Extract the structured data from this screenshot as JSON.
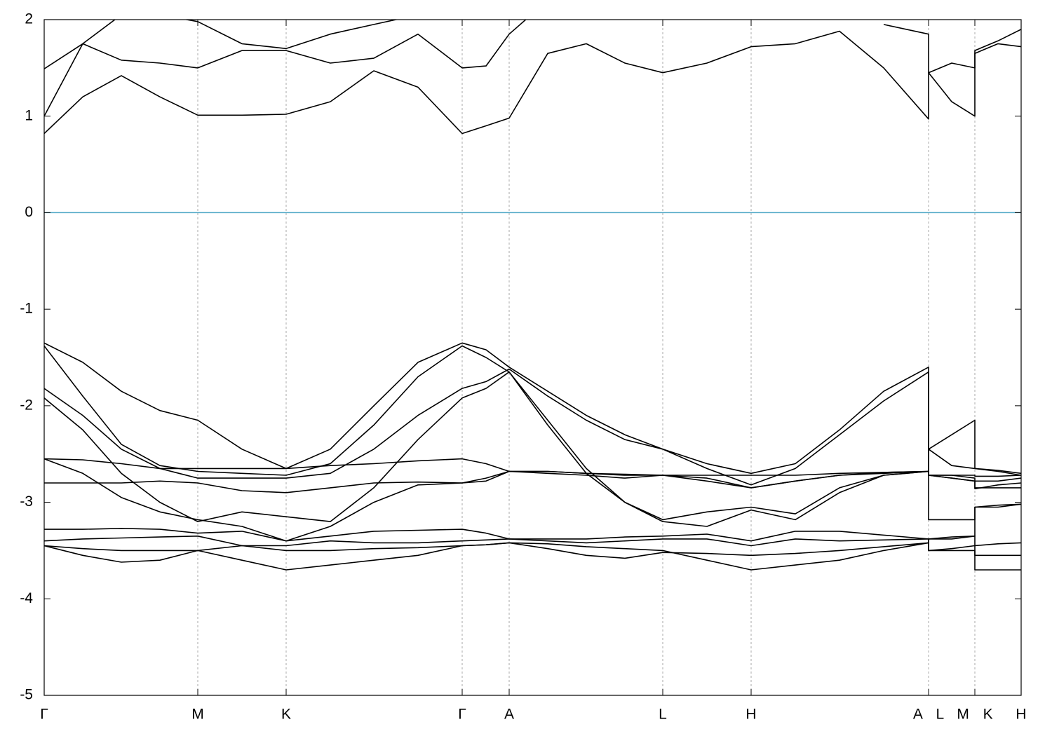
{
  "chart_data": {
    "type": "line",
    "x": [
      0,
      55,
      110,
      165,
      219,
      282,
      345,
      408,
      470,
      533,
      596,
      630,
      663,
      718,
      773,
      828,
      882,
      945,
      1008,
      1071,
      1134,
      1197,
      1261,
      1261,
      1294,
      1327,
      1327,
      1360,
      1393
    ],
    "xlim": [
      0,
      1393
    ],
    "xticks": [
      {
        "value": 0,
        "label": "Γ"
      },
      {
        "value": 219,
        "label": "M"
      },
      {
        "value": 345,
        "label": "K"
      },
      {
        "value": 596,
        "label": "Γ"
      },
      {
        "value": 663,
        "label": "A"
      },
      {
        "value": 882,
        "label": "L"
      },
      {
        "value": 1008,
        "label": "H"
      },
      {
        "value": 1261,
        "label": "A L"
      },
      {
        "value": 1327,
        "label": "M K"
      },
      {
        "value": 1393,
        "label": "H"
      }
    ],
    "ylim": [
      -5,
      2
    ],
    "yticks": [
      -5,
      -4,
      -3,
      -2,
      -1,
      0,
      1,
      2
    ],
    "grid": "x",
    "reference_line": {
      "value": 0,
      "color": "#4aa5c5"
    },
    "series": [
      {
        "color": "#000000",
        "values": [
          0.82,
          1.2,
          1.42,
          1.2,
          1.01,
          1.01,
          1.02,
          1.15,
          1.47,
          1.3,
          0.82,
          0.9,
          0.98,
          1.65,
          1.75,
          1.55,
          1.45,
          1.55,
          1.72,
          1.75,
          1.88,
          1.5,
          0.97,
          1.45,
          1.15,
          1.0,
          1.65,
          1.75,
          1.72
        ]
      },
      {
        "color": "#000000",
        "values": [
          1.0,
          1.75,
          1.58,
          1.55,
          1.5,
          1.68,
          1.68,
          1.55,
          1.6,
          1.85,
          1.5,
          1.52,
          1.85,
          2.2,
          null,
          null,
          null,
          null,
          null,
          null,
          null,
          1.95,
          1.85,
          1.45,
          1.55,
          1.5,
          1.68,
          1.78,
          1.9
        ]
      },
      {
        "color": "#000000",
        "values": [
          1.49,
          1.75,
          2.05,
          2.05,
          1.98,
          1.75,
          1.7,
          1.85,
          1.95,
          2.05,
          null,
          null,
          null,
          null,
          null,
          null,
          null,
          null,
          null,
          null,
          null,
          null,
          null,
          null,
          null,
          null,
          null,
          null,
          null
        ]
      },
      {
        "color": "#000000",
        "values": [
          -1.35,
          -1.55,
          -1.85,
          -2.05,
          -2.15,
          -2.45,
          -2.65,
          -2.45,
          -2.0,
          -1.55,
          -1.35,
          -1.42,
          -1.6,
          -1.85,
          -2.1,
          -2.3,
          -2.45,
          -2.6,
          -2.7,
          -2.6,
          -2.25,
          -1.85,
          -1.6,
          -2.45,
          -2.3,
          -2.15,
          -2.65,
          -2.68,
          -2.72
        ]
      },
      {
        "color": "#000000",
        "values": [
          -1.38,
          -1.9,
          -2.4,
          -2.62,
          -2.68,
          -2.7,
          -2.72,
          -2.6,
          -2.2,
          -1.7,
          -1.38,
          -1.5,
          -1.65,
          -2.15,
          -2.65,
          -3.0,
          -3.18,
          -3.1,
          -3.05,
          -3.12,
          -2.85,
          -2.72,
          -2.68,
          -2.72,
          -2.75,
          -2.78,
          -2.85,
          -2.85,
          -2.85
        ]
      },
      {
        "color": "#000000",
        "values": [
          -1.82,
          -2.1,
          -2.45,
          -2.65,
          -2.75,
          -2.75,
          -2.75,
          -2.7,
          -2.45,
          -2.1,
          -1.82,
          -1.75,
          -1.62,
          -1.9,
          -2.15,
          -2.35,
          -2.45,
          -2.65,
          -2.82,
          -2.65,
          -2.3,
          -1.95,
          -1.65,
          -3.18,
          -3.18,
          -3.18,
          -3.05,
          -3.03,
          -3.02
        ]
      },
      {
        "color": "#000000",
        "values": [
          -1.92,
          -2.25,
          -2.7,
          -3.0,
          -3.2,
          -3.1,
          -3.15,
          -3.2,
          -2.85,
          -2.35,
          -1.92,
          -1.82,
          -1.65,
          -2.2,
          -2.7,
          -3.0,
          -3.2,
          -3.25,
          -3.08,
          -3.18,
          -2.9,
          -2.72,
          -2.68,
          -2.72,
          -2.72,
          -2.72,
          -2.73,
          -2.73,
          -2.72
        ]
      },
      {
        "color": "#000000",
        "values": [
          -2.55,
          -2.56,
          -2.6,
          -2.65,
          -2.65,
          -2.65,
          -2.65,
          -2.62,
          -2.6,
          -2.57,
          -2.55,
          -2.6,
          -2.68,
          -2.68,
          -2.7,
          -2.71,
          -2.72,
          -2.72,
          -2.72,
          -2.72,
          -2.7,
          -2.69,
          -2.68,
          -2.45,
          -2.62,
          -2.65,
          -2.65,
          -2.67,
          -2.7
        ]
      },
      {
        "color": "#000000",
        "values": [
          -2.8,
          -2.8,
          -2.8,
          -2.78,
          -2.8,
          -2.88,
          -2.9,
          -2.85,
          -2.8,
          -2.79,
          -2.8,
          -2.75,
          -2.68,
          -2.68,
          -2.7,
          -2.72,
          -2.72,
          -2.78,
          -2.85,
          -2.78,
          -2.72,
          -2.69,
          -2.68,
          -2.72,
          -2.75,
          -2.78,
          -2.86,
          -2.82,
          -2.8
        ]
      },
      {
        "color": "#000000",
        "values": [
          -2.55,
          -2.7,
          -2.95,
          -3.1,
          -3.18,
          -3.25,
          -3.4,
          -3.25,
          -3.0,
          -2.82,
          -2.8,
          -2.78,
          -2.68,
          -2.7,
          -2.72,
          -2.75,
          -2.72,
          -2.75,
          -2.85,
          -2.78,
          -2.72,
          -2.7,
          -2.68,
          -2.72,
          -2.72,
          -2.75,
          -2.78,
          -2.78,
          -2.75
        ]
      },
      {
        "color": "#000000",
        "values": [
          -3.28,
          -3.28,
          -3.27,
          -3.28,
          -3.32,
          -3.3,
          -3.4,
          -3.35,
          -3.3,
          -3.29,
          -3.28,
          -3.32,
          -3.38,
          -3.38,
          -3.38,
          -3.36,
          -3.35,
          -3.33,
          -3.4,
          -3.3,
          -3.3,
          -3.34,
          -3.38,
          -3.5,
          -3.48,
          -3.45,
          -3.45,
          -3.43,
          -3.42
        ]
      },
      {
        "color": "#000000",
        "values": [
          -3.4,
          -3.38,
          -3.37,
          -3.36,
          -3.35,
          -3.45,
          -3.45,
          -3.4,
          -3.42,
          -3.42,
          -3.4,
          -3.39,
          -3.38,
          -3.4,
          -3.42,
          -3.4,
          -3.38,
          -3.38,
          -3.45,
          -3.38,
          -3.4,
          -3.39,
          -3.38,
          -3.38,
          -3.36,
          -3.35,
          -3.05,
          -3.05,
          -3.02
        ]
      },
      {
        "color": "#000000",
        "values": [
          -3.45,
          -3.48,
          -3.5,
          -3.5,
          -3.5,
          -3.6,
          -3.7,
          -3.65,
          -3.6,
          -3.55,
          -3.45,
          -3.44,
          -3.42,
          -3.43,
          -3.46,
          -3.48,
          -3.5,
          -3.6,
          -3.7,
          -3.65,
          -3.6,
          -3.5,
          -3.42,
          -3.5,
          -3.5,
          -3.5,
          -3.7,
          -3.7,
          -3.7
        ]
      },
      {
        "color": "#000000",
        "values": [
          -3.45,
          -3.55,
          -3.62,
          -3.6,
          -3.5,
          -3.45,
          -3.5,
          -3.5,
          -3.48,
          -3.47,
          -3.45,
          -3.44,
          -3.42,
          -3.48,
          -3.55,
          -3.58,
          -3.52,
          -3.53,
          -3.55,
          -3.53,
          -3.5,
          -3.46,
          -3.42,
          -3.38,
          -3.38,
          -3.35,
          -3.55,
          -3.55,
          -3.55
        ]
      }
    ]
  }
}
